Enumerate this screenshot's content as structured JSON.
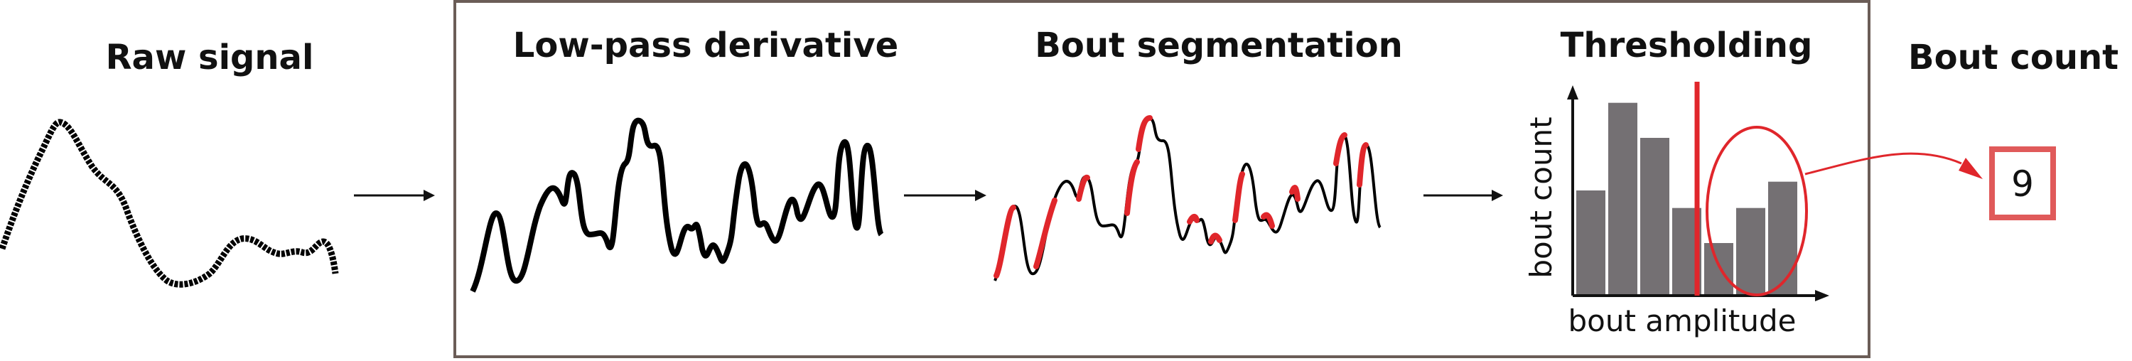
{
  "stages": {
    "raw": {
      "title": "Raw signal"
    },
    "derivative": {
      "title": "Low-pass derivative"
    },
    "segmentation": {
      "title": "Bout segmentation"
    },
    "thresholding": {
      "title": "Thresholding"
    },
    "count": {
      "title": "Bout count",
      "value": "9"
    }
  },
  "histogram": {
    "xlabel": "bout amplitude",
    "ylabel": "bout count",
    "bars": [
      6,
      11,
      9,
      5,
      3,
      5,
      6.5
    ],
    "ymax": 12
  },
  "colors": {
    "signal": "#000000",
    "accent": "#e0262b",
    "bar": "#747073",
    "frame": "#6b5d57",
    "count_box": "#e05a5a"
  }
}
